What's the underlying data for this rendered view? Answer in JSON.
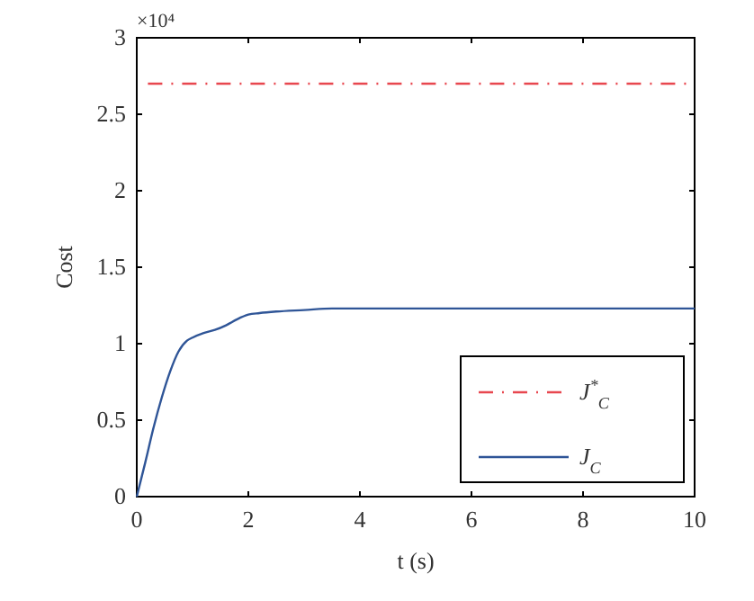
{
  "chart_data": {
    "type": "line",
    "xlabel": "t (s)",
    "ylabel": "Cost",
    "annotations": [
      "×10⁴"
    ],
    "xlim": [
      0,
      10
    ],
    "xticks": [
      0,
      2,
      4,
      6,
      8,
      10
    ],
    "ylim": [
      0,
      3
    ],
    "yticks": [
      0,
      0.5,
      1,
      1.5,
      2,
      2.5,
      3
    ],
    "grid": false,
    "legend": "bottom right",
    "marker": "none",
    "series": [
      {
        "name": "J$^{*}$$_{C}$",
        "color": "#e8474f",
        "line_style": "dashed",
        "x": [
          0.2,
          10
        ],
        "values": [
          2.7,
          2.7
        ]
      },
      {
        "name": "J$_{C}$",
        "color": "#2f5597",
        "line_style": "solid",
        "x": [
          0,
          0.15,
          0.3,
          0.45,
          0.6,
          0.75,
          0.9,
          1.0,
          1.2,
          1.4,
          1.6,
          1.8,
          2.0,
          2.2,
          2.5,
          3,
          3.5,
          4,
          5,
          6,
          7,
          8,
          9,
          10
        ],
        "values": [
          0,
          0.22,
          0.45,
          0.65,
          0.82,
          0.95,
          1.02,
          1.04,
          1.07,
          1.09,
          1.12,
          1.16,
          1.19,
          1.2,
          1.21,
          1.22,
          1.23,
          1.23,
          1.23,
          1.23,
          1.23,
          1.23,
          1.23,
          1.23
        ]
      }
    ]
  }
}
